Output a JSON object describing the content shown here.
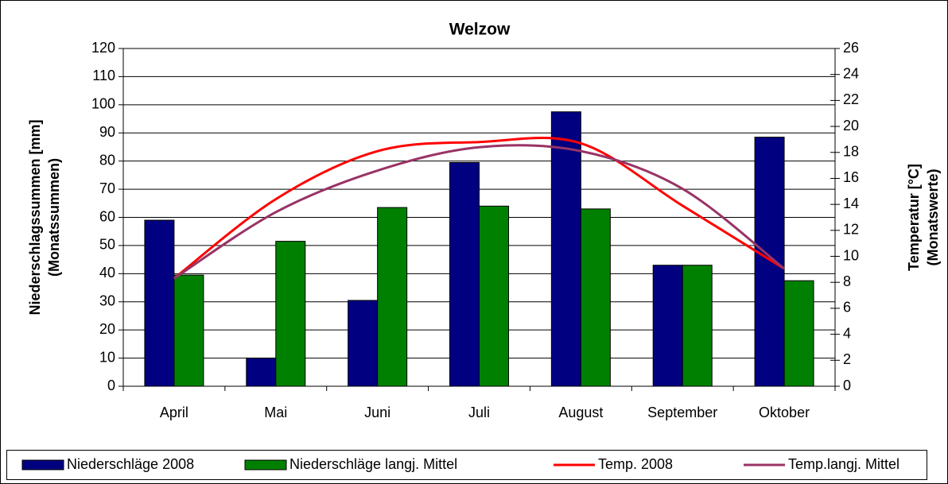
{
  "chart_data": {
    "type": "bar",
    "title": "Welzow",
    "ylabel": [
      "Niederschlagssummen [mm]",
      "(Monatssummen)"
    ],
    "y2label": [
      "Temperatur [°C]",
      "(Monatswerte)"
    ],
    "categories": [
      "April",
      "Mai",
      "Juni",
      "Juli",
      "August",
      "September",
      "Oktober"
    ],
    "series": [
      {
        "name": "Niederschläge 2008",
        "type": "bar",
        "color": "#000080",
        "values": [
          59,
          10,
          30.5,
          79.5,
          97.5,
          43,
          88.5
        ]
      },
      {
        "name": "Niederschläge langj. Mittel",
        "type": "bar",
        "color": "#008000",
        "values": [
          39.5,
          51.5,
          63.5,
          64,
          63,
          43,
          37.5
        ]
      },
      {
        "name": "Temp. 2008",
        "type": "line",
        "axis": "y2",
        "color": "#ff0000",
        "values": [
          8.3,
          14.4,
          18.1,
          18.8,
          18.7,
          13.9,
          9.05
        ]
      },
      {
        "name": "Temp.langj. Mittel",
        "type": "line",
        "axis": "y2",
        "color": "#993366",
        "values": [
          8.3,
          13.4,
          16.6,
          18.4,
          18.1,
          15.2,
          9.05
        ]
      }
    ],
    "ylim": [
      0,
      120
    ],
    "yticks": [
      0,
      10,
      20,
      30,
      40,
      50,
      60,
      70,
      80,
      90,
      100,
      110,
      120
    ],
    "y2lim": [
      0,
      26
    ],
    "y2ticks": [
      0,
      2,
      4,
      6,
      8,
      10,
      12,
      14,
      16,
      18,
      20,
      22,
      24,
      26
    ],
    "grid": true,
    "legend": "bottom"
  }
}
